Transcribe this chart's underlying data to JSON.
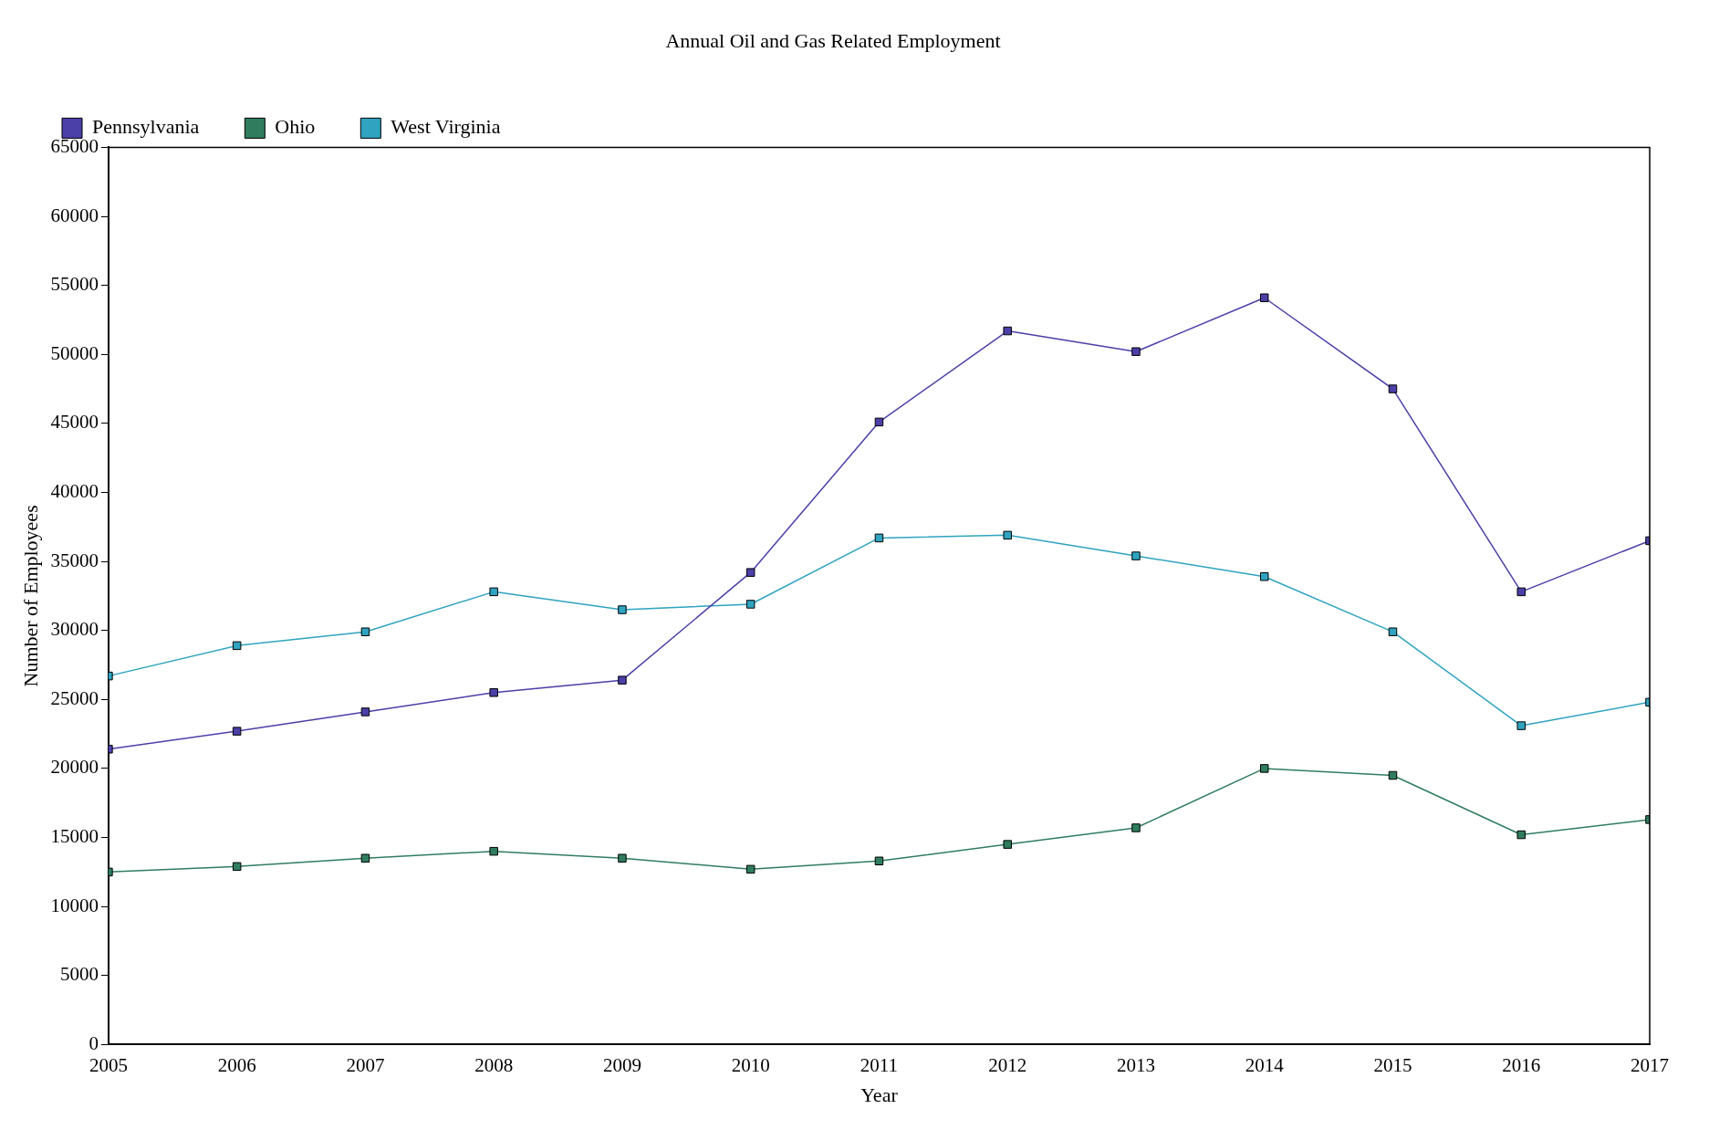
{
  "chart_data": {
    "type": "line",
    "title": "Annual Oil and Gas Related Employment",
    "xlabel": "Year",
    "ylabel": "Number of Employees",
    "x": [
      2005,
      2006,
      2007,
      2008,
      2009,
      2010,
      2011,
      2012,
      2013,
      2014,
      2015,
      2016,
      2017
    ],
    "series": [
      {
        "name": "Pennsylvania",
        "color": "#4b3fa8",
        "values": [
          21400,
          22700,
          24100,
          25500,
          26400,
          34200,
          45100,
          51700,
          50200,
          54100,
          47500,
          32800,
          36500
        ]
      },
      {
        "name": "Ohio",
        "color": "#2f7d5e",
        "values": [
          12500,
          12900,
          13500,
          14000,
          13500,
          12700,
          13300,
          14500,
          15700,
          20000,
          19500,
          15200,
          16300
        ]
      },
      {
        "name": "West Virginia",
        "color": "#2fa3c0",
        "values": [
          26700,
          28900,
          29900,
          32800,
          31500,
          31900,
          36700,
          36900,
          35400,
          33900,
          29900,
          23100,
          24800
        ]
      }
    ],
    "xlim": [
      2005,
      2017
    ],
    "xticks": [
      2005,
      2006,
      2007,
      2008,
      2009,
      2010,
      2011,
      2012,
      2013,
      2014,
      2015,
      2016,
      2017
    ],
    "ylim": [
      0,
      65000
    ],
    "yticks": [
      0,
      5000,
      10000,
      15000,
      20000,
      25000,
      30000,
      35000,
      40000,
      45000,
      50000,
      55000,
      60000,
      65000
    ],
    "grid": false,
    "legend": "top left",
    "marker": "square",
    "line_style": "solid"
  }
}
